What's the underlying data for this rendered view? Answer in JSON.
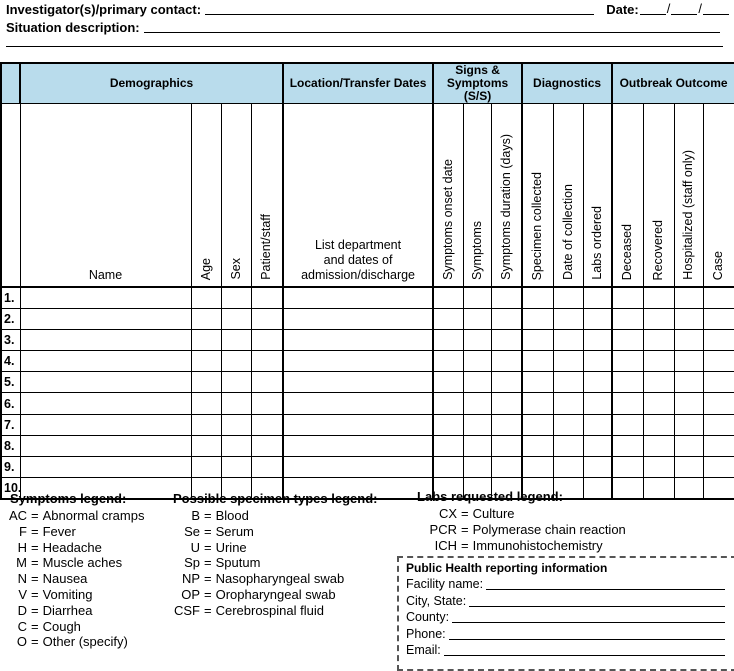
{
  "top": {
    "investigator_label": "Investigator(s)/primary contact:",
    "date_label": "Date:",
    "date_separator": "/",
    "situation_label": "Situation description:"
  },
  "colors": {
    "header_bg": "#B9DCEC"
  },
  "table": {
    "groups": [
      {
        "label": "",
        "span": 1
      },
      {
        "label": "Demographics",
        "span": 4
      },
      {
        "label": "Location/Transfer Dates",
        "span": 1
      },
      {
        "label": "Signs & Symptoms (S/S)",
        "span": 3
      },
      {
        "label": "Diagnostics",
        "span": 3
      },
      {
        "label": "Outbreak Outcome",
        "span": 4
      }
    ],
    "columns": [
      {
        "label": "",
        "kind": "rownum"
      },
      {
        "label": "Name",
        "kind": "bottom"
      },
      {
        "label": "Age",
        "kind": "rotated"
      },
      {
        "label": "Sex",
        "kind": "rotated"
      },
      {
        "label": "Patient/staff",
        "kind": "rotated"
      },
      {
        "label": "List department and dates of admission/discharge",
        "kind": "bottom-multiline",
        "lines": [
          "List department",
          "and dates of",
          "admission/discharge"
        ]
      },
      {
        "label": "Symptoms onset date",
        "kind": "rotated"
      },
      {
        "label": "Symptoms",
        "kind": "rotated"
      },
      {
        "label": "Symptoms duration (days)",
        "kind": "rotated"
      },
      {
        "label": "Specimen collected",
        "kind": "rotated"
      },
      {
        "label": "Date of collection",
        "kind": "rotated"
      },
      {
        "label": "Labs ordered",
        "kind": "rotated"
      },
      {
        "label": "Deceased",
        "kind": "rotated"
      },
      {
        "label": "Recovered",
        "kind": "rotated"
      },
      {
        "label": "Hospitalized (staff only)",
        "kind": "rotated"
      },
      {
        "label": "Case",
        "kind": "rotated"
      }
    ],
    "row_numbers": [
      "1.",
      "2.",
      "3.",
      "4.",
      "5.",
      "6.",
      "7.",
      "8.",
      "9.",
      "10."
    ]
  },
  "legend_separator": "=",
  "legends": [
    {
      "title": "Symptoms legend:",
      "items": [
        {
          "code": "AC",
          "desc": "Abnormal cramps"
        },
        {
          "code": "F",
          "desc": "Fever"
        },
        {
          "code": "H",
          "desc": "Headache"
        },
        {
          "code": "M",
          "desc": "Muscle aches"
        },
        {
          "code": "N",
          "desc": "Nausea"
        },
        {
          "code": "V",
          "desc": "Vomiting"
        },
        {
          "code": "D",
          "desc": "Diarrhea"
        },
        {
          "code": "C",
          "desc": "Cough"
        },
        {
          "code": "O",
          "desc": "Other (specify)"
        }
      ]
    },
    {
      "title": "Possible specimen types legend:",
      "items": [
        {
          "code": "B",
          "desc": "Blood"
        },
        {
          "code": "Se",
          "desc": "Serum"
        },
        {
          "code": "U",
          "desc": "Urine"
        },
        {
          "code": "Sp",
          "desc": "Sputum"
        },
        {
          "code": "NP",
          "desc": "Nasopharyngeal swab"
        },
        {
          "code": "OP",
          "desc": "Oropharyngeal swab"
        },
        {
          "code": "CSF",
          "desc": "Cerebrospinal fluid"
        }
      ]
    },
    {
      "title": "Labs requested legend:",
      "items": [
        {
          "code": "CX",
          "desc": "Culture"
        },
        {
          "code": "PCR",
          "desc": "Polymerase chain reaction"
        },
        {
          "code": "ICH",
          "desc": "Immunohistochemistry"
        }
      ]
    }
  ],
  "public_health": {
    "title": "Public Health reporting information",
    "fields": [
      "Facility name:",
      "City, State:",
      "County:",
      "Phone:",
      "Email:"
    ]
  }
}
